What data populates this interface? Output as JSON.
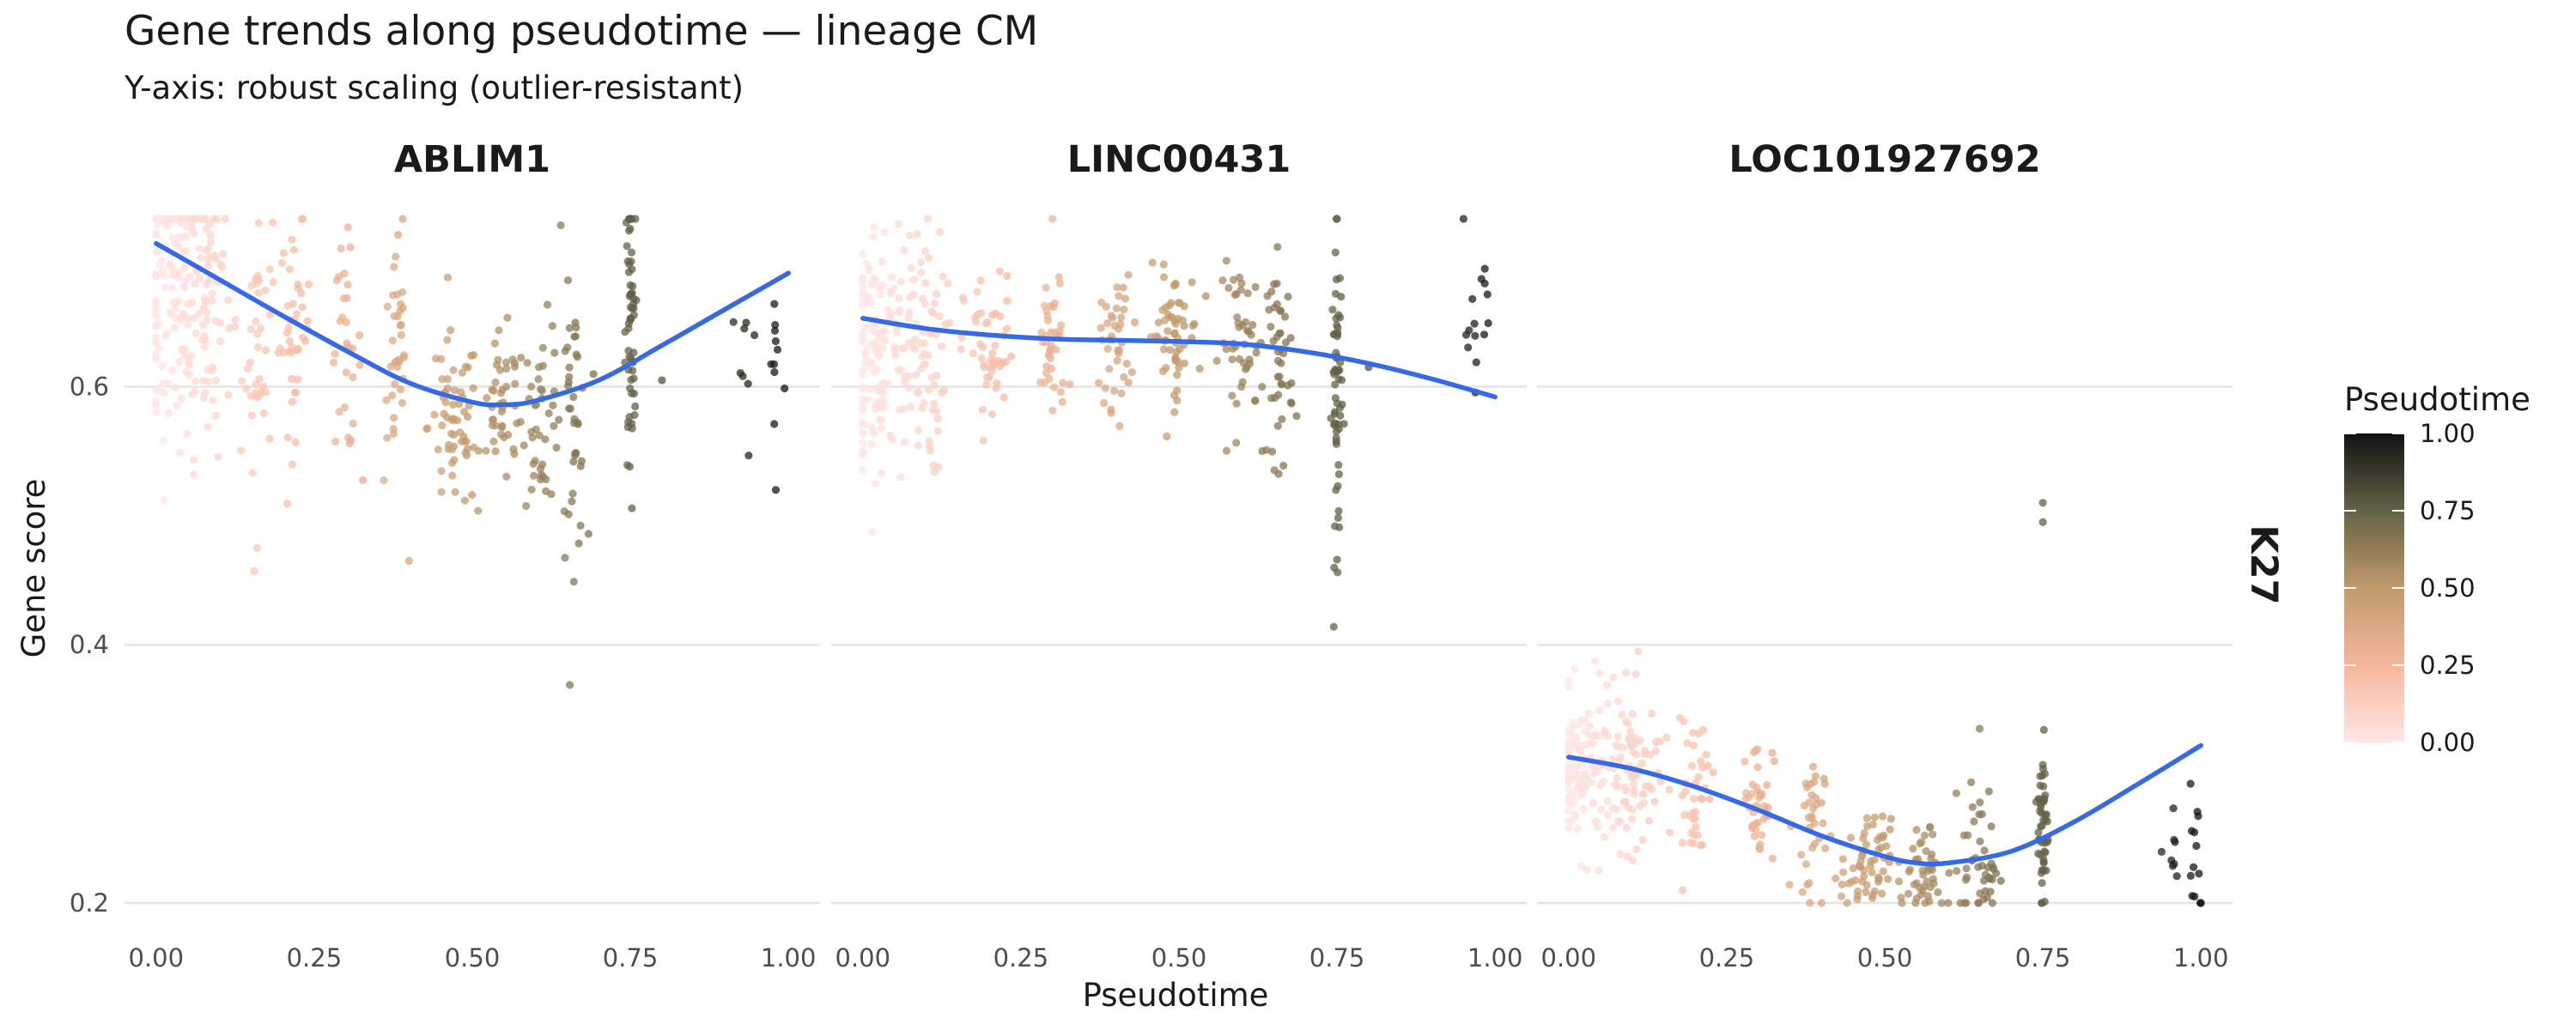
{
  "chart_data": {
    "type": "scatter",
    "title": "Gene trends along pseudotime — lineage CM",
    "subtitle": "Y-axis: robust scaling (outlier-resistant)",
    "xlabel": "Pseudotime",
    "ylabel": "Gene score",
    "row_strip": "K27",
    "xlim": [
      -0.05,
      1.05
    ],
    "ylim": [
      0.2,
      0.73
    ],
    "x_ticks": [
      "0.00",
      "0.25",
      "0.50",
      "0.75",
      "1.00"
    ],
    "y_ticks": [
      "0.2",
      "0.4",
      "0.6"
    ],
    "grid": true,
    "legend": {
      "title": "Pseudotime",
      "position": "right",
      "ticks": [
        "1.00",
        "0.75",
        "0.50",
        "0.25",
        "0.00"
      ],
      "gradient_colors": [
        "#ffe6e6",
        "#f5b79c",
        "#c09a6b",
        "#636246",
        "#121212"
      ]
    },
    "trend_color": "#3569e6",
    "panels": [
      {
        "gene": "ABLIM1",
        "trend": {
          "x": [
            0.0,
            0.1,
            0.2,
            0.3,
            0.4,
            0.5,
            0.55,
            0.6,
            0.7,
            0.8,
            0.9,
            1.0
          ],
          "y": [
            0.711,
            0.683,
            0.655,
            0.628,
            0.603,
            0.588,
            0.586,
            0.589,
            0.605,
            0.632,
            0.66,
            0.688
          ]
        },
        "clusters": [
          {
            "x": 0.02,
            "y": 0.67,
            "n": 130,
            "xs": 0.025,
            "ys": 0.06
          },
          {
            "x": 0.08,
            "y": 0.67,
            "n": 80,
            "xs": 0.02,
            "ys": 0.06
          },
          {
            "x": 0.16,
            "y": 0.64,
            "n": 40,
            "xs": 0.012,
            "ys": 0.05
          },
          {
            "x": 0.22,
            "y": 0.645,
            "n": 40,
            "xs": 0.012,
            "ys": 0.04
          },
          {
            "x": 0.3,
            "y": 0.63,
            "n": 30,
            "xs": 0.012,
            "ys": 0.04
          },
          {
            "x": 0.38,
            "y": 0.62,
            "n": 35,
            "xs": 0.01,
            "ys": 0.05
          },
          {
            "x": 0.47,
            "y": 0.57,
            "n": 60,
            "xs": 0.02,
            "ys": 0.035
          },
          {
            "x": 0.55,
            "y": 0.58,
            "n": 45,
            "xs": 0.018,
            "ys": 0.03
          },
          {
            "x": 0.61,
            "y": 0.58,
            "n": 40,
            "xs": 0.015,
            "ys": 0.035
          },
          {
            "x": 0.66,
            "y": 0.57,
            "n": 40,
            "xs": 0.01,
            "ys": 0.05
          },
          {
            "x": 0.75,
            "y": 0.64,
            "n": 60,
            "xs": 0.004,
            "ys": 0.06
          },
          {
            "x": 0.93,
            "y": 0.61,
            "n": 8,
            "xs": 0.01,
            "ys": 0.035
          },
          {
            "x": 0.98,
            "y": 0.62,
            "n": 10,
            "xs": 0.008,
            "ys": 0.05
          }
        ],
        "outliers": [
          [
            0.155,
            0.457
          ],
          [
            0.16,
            0.475
          ],
          [
            0.4,
            0.465
          ],
          [
            0.39,
            0.73
          ],
          [
            0.64,
            0.725
          ],
          [
            0.8,
            0.605
          ],
          [
            0.98,
            0.52
          ]
        ]
      },
      {
        "gene": "LINC00431",
        "trend": {
          "x": [
            0.0,
            0.1,
            0.2,
            0.3,
            0.4,
            0.5,
            0.6,
            0.7,
            0.8,
            0.9,
            1.0
          ],
          "y": [
            0.653,
            0.645,
            0.64,
            0.637,
            0.636,
            0.635,
            0.633,
            0.627,
            0.618,
            0.606,
            0.592
          ]
        },
        "clusters": [
          {
            "x": 0.02,
            "y": 0.63,
            "n": 130,
            "xs": 0.025,
            "ys": 0.05
          },
          {
            "x": 0.09,
            "y": 0.63,
            "n": 80,
            "xs": 0.02,
            "ys": 0.05
          },
          {
            "x": 0.2,
            "y": 0.625,
            "n": 50,
            "xs": 0.02,
            "ys": 0.03
          },
          {
            "x": 0.3,
            "y": 0.63,
            "n": 40,
            "xs": 0.012,
            "ys": 0.03
          },
          {
            "x": 0.4,
            "y": 0.635,
            "n": 40,
            "xs": 0.012,
            "ys": 0.025
          },
          {
            "x": 0.49,
            "y": 0.64,
            "n": 60,
            "xs": 0.02,
            "ys": 0.025
          },
          {
            "x": 0.6,
            "y": 0.635,
            "n": 45,
            "xs": 0.018,
            "ys": 0.03
          },
          {
            "x": 0.66,
            "y": 0.62,
            "n": 45,
            "xs": 0.01,
            "ys": 0.04
          },
          {
            "x": 0.75,
            "y": 0.59,
            "n": 60,
            "xs": 0.004,
            "ys": 0.06
          },
          {
            "x": 0.97,
            "y": 0.655,
            "n": 14,
            "xs": 0.012,
            "ys": 0.025
          }
        ],
        "outliers": [
          [
            0.75,
            0.466
          ],
          [
            0.75,
            0.73
          ],
          [
            0.3,
            0.73
          ],
          [
            0.95,
            0.73
          ],
          [
            0.8,
            0.615
          ],
          [
            0.02,
            0.525
          ],
          [
            0.06,
            0.53
          ]
        ]
      },
      {
        "gene": "LOC101927692",
        "trend": {
          "x": [
            0.0,
            0.1,
            0.2,
            0.3,
            0.4,
            0.5,
            0.55,
            0.6,
            0.7,
            0.8,
            0.9,
            1.0
          ],
          "y": [
            0.313,
            0.304,
            0.29,
            0.272,
            0.252,
            0.236,
            0.231,
            0.231,
            0.24,
            0.263,
            0.292,
            0.322
          ]
        },
        "clusters": [
          {
            "x": 0.02,
            "y": 0.3,
            "n": 130,
            "xs": 0.025,
            "ys": 0.03
          },
          {
            "x": 0.1,
            "y": 0.3,
            "n": 80,
            "xs": 0.02,
            "ys": 0.03
          },
          {
            "x": 0.2,
            "y": 0.29,
            "n": 40,
            "xs": 0.015,
            "ys": 0.03
          },
          {
            "x": 0.3,
            "y": 0.28,
            "n": 40,
            "xs": 0.012,
            "ys": 0.025
          },
          {
            "x": 0.38,
            "y": 0.26,
            "n": 35,
            "xs": 0.012,
            "ys": 0.03
          },
          {
            "x": 0.47,
            "y": 0.225,
            "n": 60,
            "xs": 0.02,
            "ys": 0.02
          },
          {
            "x": 0.56,
            "y": 0.225,
            "n": 45,
            "xs": 0.02,
            "ys": 0.02
          },
          {
            "x": 0.65,
            "y": 0.23,
            "n": 45,
            "xs": 0.015,
            "ys": 0.03
          },
          {
            "x": 0.75,
            "y": 0.26,
            "n": 50,
            "xs": 0.004,
            "ys": 0.035
          },
          {
            "x": 0.95,
            "y": 0.25,
            "n": 8,
            "xs": 0.012,
            "ys": 0.03
          },
          {
            "x": 0.99,
            "y": 0.25,
            "n": 12,
            "xs": 0.008,
            "ys": 0.04
          }
        ],
        "outliers": [
          [
            0.75,
            0.51
          ],
          [
            0.75,
            0.495
          ],
          [
            0.11,
            0.395
          ],
          [
            0.18,
            0.21
          ],
          [
            0.65,
            0.335
          ],
          [
            0.99,
            0.205
          ]
        ]
      }
    ]
  }
}
